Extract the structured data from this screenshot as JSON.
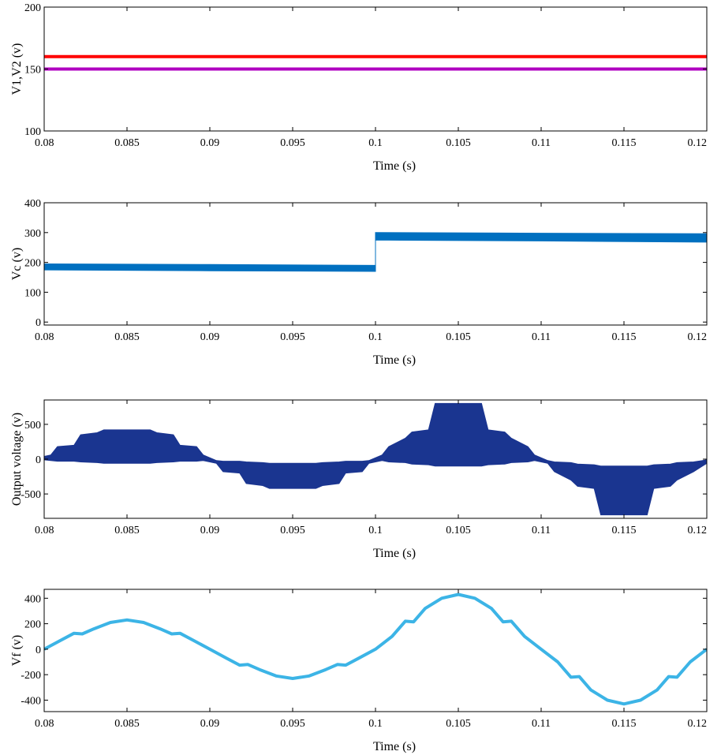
{
  "chart_data": [
    {
      "type": "line",
      "xlabel": "Time (s)",
      "ylabel": "V1,V2 (v)",
      "xlim": [
        0.08,
        0.12
      ],
      "ylim": [
        100,
        200
      ],
      "xticks": [
        "0.08",
        "0.085",
        "0.09",
        "0.095",
        "0.1",
        "0.105",
        "0.11",
        "0.115",
        "0.12"
      ],
      "yticks": [
        "100",
        "150",
        "200"
      ],
      "series": [
        {
          "color": "#ff0000",
          "x": [
            0.08,
            0.12
          ],
          "y": [
            160,
            160
          ]
        },
        {
          "color": "#b000c0",
          "x": [
            0.08,
            0.12
          ],
          "y": [
            150,
            150
          ]
        }
      ]
    },
    {
      "type": "area",
      "xlabel": "Time (s)",
      "ylabel": "Vc (v)",
      "xlim": [
        0.08,
        0.12
      ],
      "ylim": [
        -10,
        400
      ],
      "xticks": [
        "0.08",
        "0.085",
        "0.09",
        "0.095",
        "0.1",
        "0.105",
        "0.11",
        "0.115",
        "0.12"
      ],
      "yticks": [
        "0",
        "100",
        "200",
        "300",
        "400"
      ],
      "series": [
        {
          "color": "#0070c0",
          "x": [
            0.08,
            0.09,
            0.1,
            0.1,
            0.11,
            0.12
          ],
          "upper": [
            195,
            193,
            190,
            300,
            298,
            296
          ],
          "lower": [
            175,
            172,
            170,
            275,
            272,
            268
          ]
        }
      ]
    },
    {
      "type": "area",
      "xlabel": "Time (s)",
      "ylabel": "Output voltage (v)",
      "xlim": [
        0.08,
        0.12
      ],
      "ylim": [
        -850,
        850
      ],
      "xticks": [
        "0.08",
        "0.085",
        "0.09",
        "0.095",
        "0.1",
        "0.105",
        "0.11",
        "0.115",
        "0.12"
      ],
      "yticks": [
        "-500",
        "0",
        "500"
      ],
      "series": [
        {
          "color": "#1a3590",
          "x": [
            0.08,
            0.0804,
            0.0808,
            0.0818,
            0.0822,
            0.0832,
            0.0836,
            0.0864,
            0.0868,
            0.0878,
            0.0882,
            0.0892,
            0.0896,
            0.0904,
            0.0908,
            0.0918,
            0.0922,
            0.0932,
            0.0936,
            0.0964,
            0.0968,
            0.0978,
            0.0982,
            0.0992,
            0.0996,
            0.1004,
            0.1008,
            0.1018,
            0.1022,
            0.1032,
            0.1036,
            0.1064,
            0.1068,
            0.1078,
            0.1082,
            0.1092,
            0.1096,
            0.1104,
            0.1108,
            0.1118,
            0.1122,
            0.1132,
            0.1136,
            0.1164,
            0.1168,
            0.1178,
            0.1182,
            0.1192,
            0.12
          ],
          "upper": [
            40,
            60,
            180,
            200,
            350,
            380,
            420,
            420,
            380,
            350,
            200,
            180,
            60,
            -20,
            -30,
            -30,
            -40,
            -50,
            -60,
            -60,
            -50,
            -40,
            -30,
            -30,
            -20,
            60,
            180,
            300,
            390,
            420,
            800,
            800,
            420,
            390,
            300,
            180,
            60,
            -20,
            -40,
            -50,
            -70,
            -80,
            -100,
            -100,
            -80,
            -70,
            -50,
            -40,
            -10
          ],
          "lower": [
            -10,
            -20,
            -30,
            -30,
            -40,
            -50,
            -60,
            -60,
            -50,
            -40,
            -30,
            -30,
            -20,
            -60,
            -180,
            -200,
            -350,
            -380,
            -420,
            -420,
            -380,
            -350,
            -200,
            -180,
            -60,
            -20,
            -40,
            -50,
            -70,
            -80,
            -100,
            -100,
            -80,
            -70,
            -50,
            -40,
            -20,
            -60,
            -180,
            -300,
            -390,
            -420,
            -800,
            -800,
            -420,
            -390,
            -300,
            -180,
            -60
          ]
        }
      ]
    },
    {
      "type": "line",
      "xlabel": "Time (s)",
      "ylabel": "Vf (v)",
      "xlim": [
        0.08,
        0.12
      ],
      "ylim": [
        -490,
        470
      ],
      "xticks": [
        "0.08",
        "0.085",
        "0.09",
        "0.095",
        "0.1",
        "0.105",
        "0.11",
        "0.115",
        "0.12"
      ],
      "yticks": [
        "-400",
        "-200",
        "0",
        "200",
        "400"
      ],
      "series": [
        {
          "color": "#3cb4e6",
          "x": [
            0.08,
            0.081,
            0.0818,
            0.0823,
            0.083,
            0.084,
            0.085,
            0.086,
            0.087,
            0.0877,
            0.0882,
            0.089,
            0.09,
            0.091,
            0.0918,
            0.0923,
            0.093,
            0.094,
            0.095,
            0.096,
            0.097,
            0.0977,
            0.0982,
            0.099,
            0.1,
            0.101,
            0.1018,
            0.1023,
            0.103,
            0.104,
            0.105,
            0.106,
            0.107,
            0.1077,
            0.1082,
            0.109,
            0.11,
            0.111,
            0.1118,
            0.1123,
            0.113,
            0.114,
            0.115,
            0.116,
            0.117,
            0.1177,
            0.1182,
            0.119,
            0.12
          ],
          "y": [
            0,
            70,
            125,
            120,
            160,
            210,
            230,
            210,
            160,
            120,
            125,
            70,
            0,
            -70,
            -125,
            -120,
            -160,
            -210,
            -230,
            -210,
            -160,
            -120,
            -125,
            -70,
            0,
            100,
            220,
            215,
            320,
            400,
            430,
            400,
            320,
            215,
            220,
            100,
            0,
            -100,
            -220,
            -215,
            -320,
            -400,
            -430,
            -400,
            -320,
            -215,
            -220,
            -100,
            0
          ]
        }
      ]
    }
  ]
}
